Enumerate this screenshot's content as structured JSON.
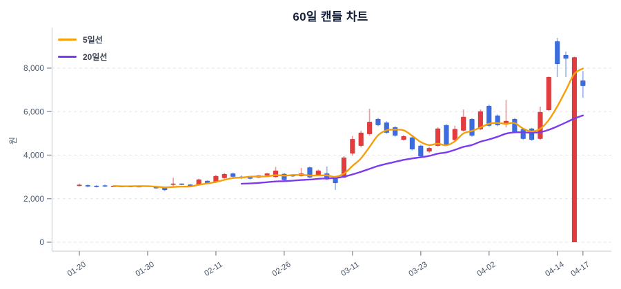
{
  "title": "60일 캔들 차트",
  "legend": [
    {
      "label": "5일선",
      "color": "#f59f0b"
    },
    {
      "label": "20일선",
      "color": "#7c3aed"
    }
  ],
  "chart_data": {
    "type": "candlestick",
    "title": "60일 캔들 차트",
    "ylabel": "원",
    "ylim": [
      0,
      9870
    ],
    "grid": true,
    "legend_position": "top-left",
    "up_color": "#e23c3f",
    "down_color": "#3b6ce0",
    "axis_text_color": "#4a5b70",
    "y_ticks": [
      {
        "v": 0,
        "label": "0"
      },
      {
        "v": 2000,
        "label": "2,000"
      },
      {
        "v": 4000,
        "label": "4,000"
      },
      {
        "v": 6000,
        "label": "6,000"
      },
      {
        "v": 8000,
        "label": "8,000"
      }
    ],
    "x_ticks": [
      {
        "i": 0,
        "label": "01-20"
      },
      {
        "i": 8,
        "label": "01-30"
      },
      {
        "i": 16,
        "label": "02-11"
      },
      {
        "i": 24,
        "label": "02-26"
      },
      {
        "i": 32,
        "label": "03-11"
      },
      {
        "i": 40,
        "label": "03-23"
      },
      {
        "i": 48,
        "label": "04-02"
      },
      {
        "i": 56,
        "label": "04-14"
      },
      {
        "i": 59,
        "label": "04-17"
      }
    ],
    "candle_count": 60,
    "candles_format": [
      "open",
      "high",
      "low",
      "close"
    ],
    "candles": [
      [
        2600,
        2700,
        2560,
        2640
      ],
      [
        2620,
        2650,
        2520,
        2560
      ],
      [
        2590,
        2630,
        2510,
        2560
      ],
      [
        2610,
        2650,
        2530,
        2570
      ],
      [
        2560,
        2600,
        2540,
        2590
      ],
      [
        2580,
        2600,
        2550,
        2570
      ],
      [
        2550,
        2590,
        2540,
        2580
      ],
      [
        2545,
        2585,
        2530,
        2575
      ],
      [
        2600,
        2610,
        2540,
        2560
      ],
      [
        2560,
        2570,
        2450,
        2480
      ],
      [
        2530,
        2550,
        2350,
        2400
      ],
      [
        2640,
        2960,
        2520,
        2690
      ],
      [
        2690,
        2700,
        2620,
        2650
      ],
      [
        2650,
        2670,
        2560,
        2580
      ],
      [
        2660,
        2920,
        2630,
        2880
      ],
      [
        2820,
        2850,
        2670,
        2700
      ],
      [
        2760,
        3090,
        2720,
        3040
      ],
      [
        2950,
        3190,
        2900,
        3130
      ],
      [
        3160,
        3200,
        2980,
        3010
      ],
      [
        3010,
        3070,
        2900,
        2970
      ],
      [
        3000,
        3020,
        2880,
        2920
      ],
      [
        2970,
        3090,
        2950,
        3070
      ],
      [
        3070,
        3180,
        3040,
        3160
      ],
      [
        3000,
        3460,
        2960,
        3290
      ],
      [
        3140,
        3180,
        2820,
        2860
      ],
      [
        3080,
        3130,
        3000,
        3040
      ],
      [
        3040,
        3420,
        3010,
        3160
      ],
      [
        3440,
        3470,
        2940,
        2980
      ],
      [
        3080,
        3340,
        3040,
        3290
      ],
      [
        3160,
        3480,
        2850,
        2890
      ],
      [
        3000,
        3030,
        2400,
        2720
      ],
      [
        2970,
        3950,
        2950,
        3890
      ],
      [
        4080,
        4880,
        3980,
        4740
      ],
      [
        4430,
        5130,
        4360,
        5030
      ],
      [
        4970,
        6130,
        4900,
        5530
      ],
      [
        5660,
        5720,
        5330,
        5380
      ],
      [
        5500,
        5560,
        4980,
        5030
      ],
      [
        5280,
        5330,
        4850,
        4900
      ],
      [
        4710,
        4920,
        4670,
        4870
      ],
      [
        4810,
        4850,
        4220,
        4270
      ],
      [
        4430,
        4480,
        3900,
        3950
      ],
      [
        4170,
        4380,
        4100,
        4330
      ],
      [
        4430,
        5280,
        4400,
        5220
      ],
      [
        5380,
        5420,
        4440,
        4490
      ],
      [
        4700,
        5350,
        4650,
        5200
      ],
      [
        5130,
        6100,
        5080,
        5760
      ],
      [
        5660,
        5700,
        4850,
        4900
      ],
      [
        5190,
        6100,
        5150,
        6010
      ],
      [
        6260,
        6330,
        5300,
        5350
      ],
      [
        5820,
        5870,
        5330,
        5380
      ],
      [
        5480,
        6540,
        5280,
        5570
      ],
      [
        5660,
        5710,
        5010,
        5060
      ],
      [
        5190,
        5240,
        4700,
        4750
      ],
      [
        5220,
        5260,
        4660,
        4710
      ],
      [
        4750,
        6230,
        4700,
        5980
      ],
      [
        6070,
        7610,
        6030,
        7590
      ],
      [
        9230,
        9390,
        7590,
        8190
      ],
      [
        8600,
        8760,
        7590,
        8440
      ],
      [
        0,
        8530,
        0,
        8500
      ],
      [
        7430,
        7870,
        6640,
        7180
      ]
    ],
    "ma_series": [
      {
        "name": "5일선",
        "window": 5,
        "color": "#f59f0b"
      },
      {
        "name": "20일선",
        "window": 20,
        "color": "#7c3aed"
      }
    ]
  }
}
